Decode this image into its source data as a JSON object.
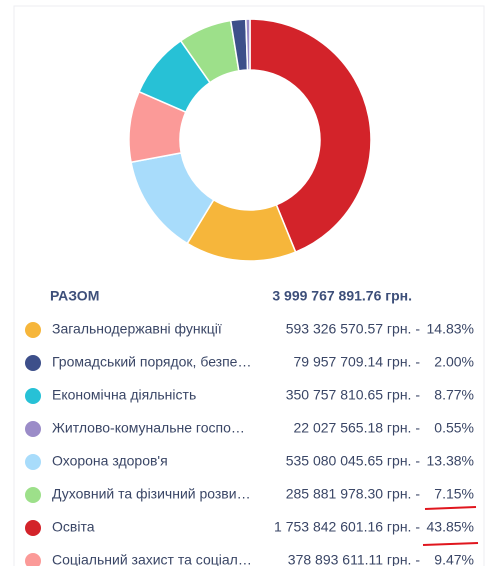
{
  "chart_data": {
    "type": "donut",
    "values": [
      43.85,
      14.83,
      13.38,
      9.47,
      8.77,
      7.15,
      2.0,
      0.55
    ],
    "colors": [
      "#d3232a",
      "#f6b63b",
      "#a8dcfb",
      "#fb9a98",
      "#27c1d6",
      "#9de08a",
      "#3d4f8a",
      "#9b8cc8"
    ]
  },
  "table": {
    "total": {
      "name": "РАЗОМ",
      "amount": "3 999 767 891.76 грн."
    },
    "rows": [
      {
        "name": "Загальнодержавні функції",
        "amount": "593 326 570.57 грн. -",
        "percent": "14.83%",
        "color": "#f6b63b"
      },
      {
        "name": "Громадський порядок, безпе…",
        "amount": "79 957 709.14 грн. -",
        "percent": "2.00%",
        "color": "#3d4f8a"
      },
      {
        "name": "Економічна діяльність",
        "amount": "350 757 810.65 грн. -",
        "percent": "8.77%",
        "color": "#27c1d6"
      },
      {
        "name": "Житлово-комунальне госпо…",
        "amount": "22 027 565.18 грн. -",
        "percent": "0.55%",
        "color": "#9b8cc8"
      },
      {
        "name": "Охорона здоров'я",
        "amount": "535 080 045.65 грн. -",
        "percent": "13.38%",
        "color": "#a8dcfb"
      },
      {
        "name": "Духовний та фізичний розви…",
        "amount": "285 881 978.30 грн. -",
        "percent": "7.15%",
        "color": "#9de08a"
      },
      {
        "name": "Освіта",
        "amount": "1 753 842 601.16 грн. -",
        "percent": "43.85%",
        "color": "#d3232a"
      },
      {
        "name": "Соціальний захист та соціал…",
        "amount": "378 893 611.11 грн. -",
        "percent": "9.47%",
        "color": "#fb9a98"
      }
    ]
  }
}
